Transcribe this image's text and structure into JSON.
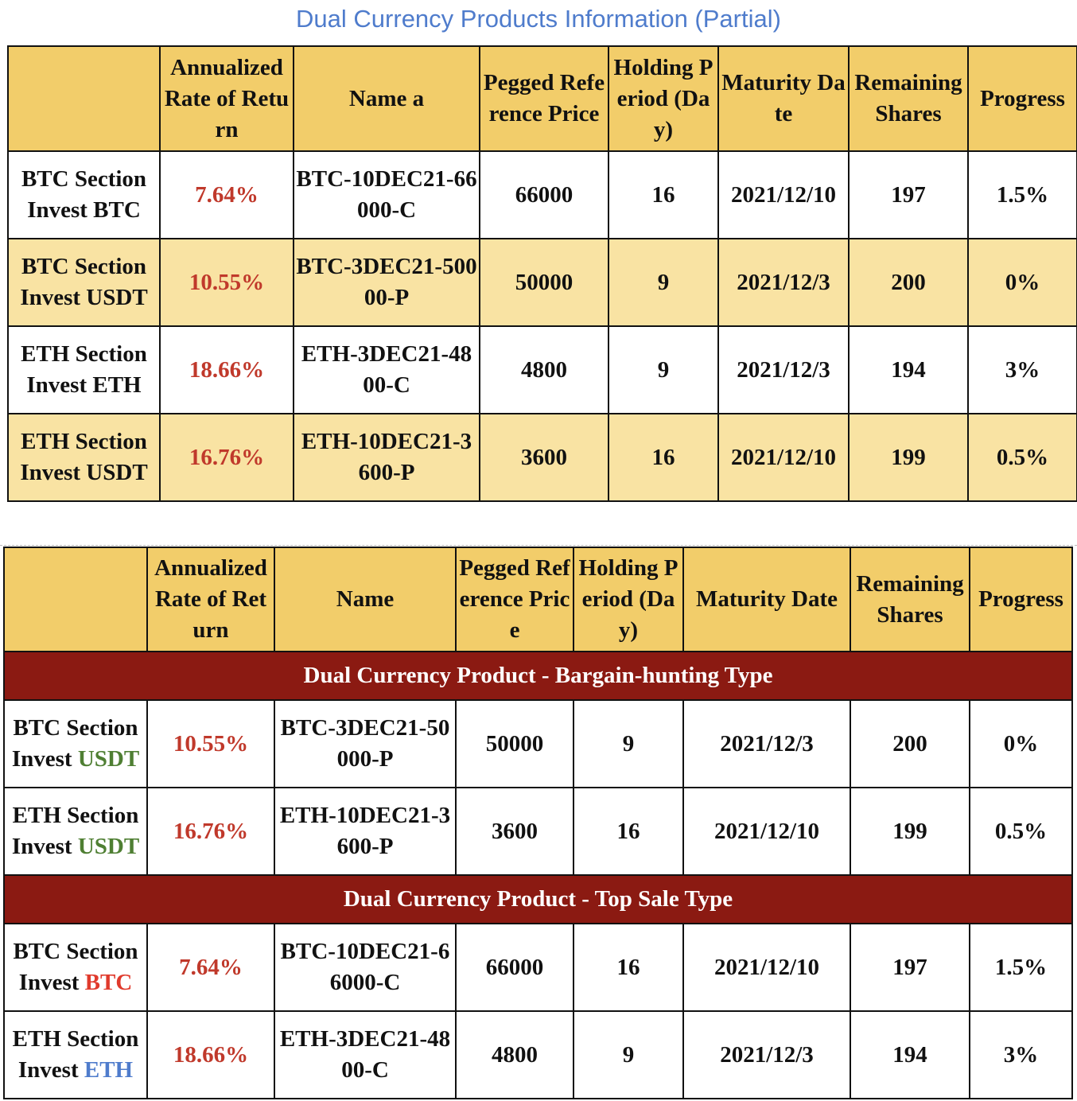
{
  "title": "Dual Currency Products Information (Partial)",
  "table1": {
    "headers": [
      "",
      "Annualized Rate of Return",
      "Name a",
      "Pegged Reference Price",
      "Holding Period (Day)",
      "Maturity Date",
      "Remaining Shares",
      "Progress"
    ],
    "rows": [
      {
        "section": "BTC Section",
        "invest": "Invest BTC",
        "rate": "7.64%",
        "name": "BTC-10DEC21-66000-C",
        "price": "66000",
        "period": "16",
        "maturity": "2021/12/10",
        "shares": "197",
        "progress": "1.5%"
      },
      {
        "section": "BTC Section",
        "invest": "Invest USDT",
        "rate": "10.55%",
        "name": "BTC-3DEC21-50000-P",
        "price": "50000",
        "period": "9",
        "maturity": "2021/12/3",
        "shares": "200",
        "progress": "0%"
      },
      {
        "section": "ETH Section",
        "invest": "Invest ETH",
        "rate": "18.66%",
        "name": "ETH-3DEC21-4800-C",
        "price": "4800",
        "period": "9",
        "maturity": "2021/12/3",
        "shares": "194",
        "progress": "3%"
      },
      {
        "section": "ETH Section",
        "invest": "Invest USDT",
        "rate": "16.76%",
        "name": "ETH-10DEC21-3600-P",
        "price": "3600",
        "period": "16",
        "maturity": "2021/12/10",
        "shares": "199",
        "progress": "0.5%"
      }
    ]
  },
  "table2": {
    "headers": [
      "",
      "Annualized Rate of Return",
      "Name",
      "Pegged Reference Price",
      "Holding Period (Day)",
      "Maturity Date",
      "Remaining Shares",
      "Progress"
    ],
    "group1_title": "Dual Currency Product - Bargain-hunting Type",
    "group1": [
      {
        "section": "BTC Section",
        "invest_word": "Invest",
        "invest_coin": "USDT",
        "rate": "10.55%",
        "name": "BTC-3DEC21-50000-P",
        "price": "50000",
        "period": "9",
        "maturity": "2021/12/3",
        "shares": "200",
        "progress": "0%"
      },
      {
        "section": "ETH Section",
        "invest_word": "Invest",
        "invest_coin": "USDT",
        "rate": "16.76%",
        "name": "ETH-10DEC21-3600-P",
        "price": "3600",
        "period": "16",
        "maturity": "2021/12/10",
        "shares": "199",
        "progress": "0.5%"
      }
    ],
    "group2_title": "Dual Currency Product - Top Sale Type",
    "group2": [
      {
        "section": "BTC Section",
        "invest_word": "Invest",
        "invest_coin": "BTC",
        "rate": "7.64%",
        "name": "BTC-10DEC21-66000-C",
        "price": "66000",
        "period": "16",
        "maturity": "2021/12/10",
        "shares": "197",
        "progress": "1.5%"
      },
      {
        "section": "ETH Section",
        "invest_word": "Invest",
        "invest_coin": "ETH",
        "rate": "18.66%",
        "name": "ETH-3DEC21-4800-C",
        "price": "4800",
        "period": "9",
        "maturity": "2021/12/3",
        "shares": "194",
        "progress": "3%"
      }
    ]
  },
  "colors": {
    "title": "#4f7ccc",
    "header_bg": "#f2cd6a",
    "row_yellow_bg": "#f9e3a3",
    "rate_red": "#c0392b",
    "section_band_bg": "#8b1a12",
    "usdt_green": "#4f7f33",
    "btc_red": "#e03a2c",
    "eth_blue": "#4f7ccc"
  }
}
